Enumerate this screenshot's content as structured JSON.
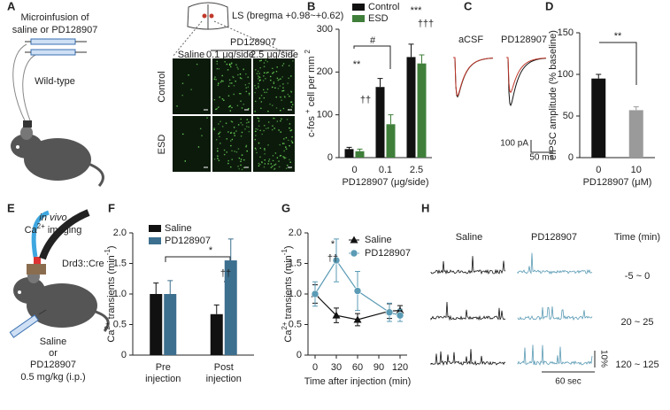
{
  "figure": {
    "panel_labels": [
      "A",
      "B",
      "C",
      "D",
      "E",
      "F",
      "G",
      "H"
    ],
    "a": {
      "title": [
        "Microinfusion of",
        "saline or PD128907"
      ],
      "strain": "Wild-type",
      "section": "LS (bregma +0.98~+0.62)",
      "drug": "PD128907",
      "columns": [
        "Saline",
        "0.1 μg/side",
        "2.5 μg/side"
      ],
      "rows": [
        "Control",
        "ESD"
      ]
    },
    "c": {
      "conditions": [
        "aCSF",
        "PD128907"
      ],
      "scale": [
        "100 pA",
        "50 ms"
      ]
    },
    "e": {
      "mode": "in vivo",
      "imaging": [
        "Ca",
        "2+",
        " imaging"
      ],
      "line": "Drd3::Cre",
      "treatment": [
        "Saline",
        "or",
        "PD128907",
        "0.5 mg/kg (i.p.)"
      ]
    },
    "h": {
      "columns": [
        "Saline",
        "PD128907",
        "Time (min)"
      ],
      "rows": [
        "-5 ~ 0",
        "20 ~ 25",
        "120 ~ 125"
      ],
      "scale": [
        "10%",
        "60 sec"
      ]
    }
  },
  "chart_data": [
    {
      "type": "bar",
      "ylabel": [
        "c-fos ",
        "+",
        " cell per mm ",
        "2"
      ],
      "xlabel": "PD128907 (μg/side)",
      "categories": [
        "0",
        "0.1",
        "2.5"
      ],
      "series": [
        {
          "name": "Control",
          "color": "#111111",
          "values": [
            20,
            165,
            235
          ],
          "errors": [
            4,
            20,
            30
          ]
        },
        {
          "name": "ESD",
          "color": "#3f7f3a",
          "values": [
            15,
            78,
            220
          ],
          "errors": [
            5,
            22,
            20
          ]
        }
      ],
      "ylim": [
        0,
        300
      ],
      "yticks": [
        0,
        100,
        200,
        300
      ],
      "annotations": [
        "**",
        "#",
        "††",
        "***",
        "†††"
      ]
    },
    {
      "type": "bar",
      "ylabel": [
        "eIPSC amplitude (% baseline)"
      ],
      "xlabel": "PD128907 (μM)",
      "categories": [
        "0",
        "10"
      ],
      "values": [
        95,
        57
      ],
      "errors": [
        5,
        4
      ],
      "colors": [
        "#111111",
        "#9a9a9a"
      ],
      "ylim": [
        0,
        150
      ],
      "yticks": [
        0,
        50,
        100,
        150
      ],
      "annotations": [
        "**"
      ]
    },
    {
      "type": "bar",
      "ylabel": [
        "Ca",
        "2+",
        " transients (min",
        "-1",
        ")"
      ],
      "categories": [
        [
          "Pre",
          "injection"
        ],
        [
          "Post",
          "injection"
        ]
      ],
      "series": [
        {
          "name": "Saline",
          "color": "#111111",
          "values": [
            1.0,
            0.67
          ],
          "errors": [
            0.18,
            0.15
          ]
        },
        {
          "name": "PD128907",
          "color": "#3d6f8e",
          "values": [
            1.0,
            1.55
          ],
          "errors": [
            0.22,
            0.35
          ]
        }
      ],
      "ylim": [
        0,
        2
      ],
      "yticks": [
        0,
        0.5,
        {
          "value": 1,
          "label": "1.0"
        },
        1.5,
        {
          "value": 2,
          "label": "2.0"
        }
      ],
      "annotations": [
        "*",
        "††"
      ]
    },
    {
      "type": "line",
      "ylabel": [
        "Ca",
        "2+",
        " transients (min",
        "-1",
        ")"
      ],
      "xlabel": "Time after injection (min)",
      "x": [
        0,
        30,
        60,
        105,
        120
      ],
      "series": [
        {
          "name": "Saline",
          "color": "#111111",
          "marker": "triangle",
          "values": [
            1.0,
            0.65,
            0.58,
            0.72,
            0.73
          ],
          "errors": [
            0.15,
            0.12,
            0.1,
            0.12,
            0.08
          ]
        },
        {
          "name": "PD128907",
          "color": "#5b9bb5",
          "marker": "circle",
          "values": [
            1.0,
            1.55,
            1.05,
            0.7,
            0.65
          ],
          "errors": [
            0.2,
            0.35,
            0.32,
            0.15,
            0.1
          ]
        }
      ],
      "xlim": [
        -10,
        130
      ],
      "xticks": [
        0,
        30,
        60,
        90,
        120
      ],
      "ylim": [
        0,
        2
      ],
      "yticks": [
        0,
        0.5,
        {
          "value": 1,
          "label": "1.0"
        },
        1.5,
        {
          "value": 2,
          "label": "2.0"
        }
      ],
      "annotations": [
        "*",
        "††"
      ]
    }
  ]
}
